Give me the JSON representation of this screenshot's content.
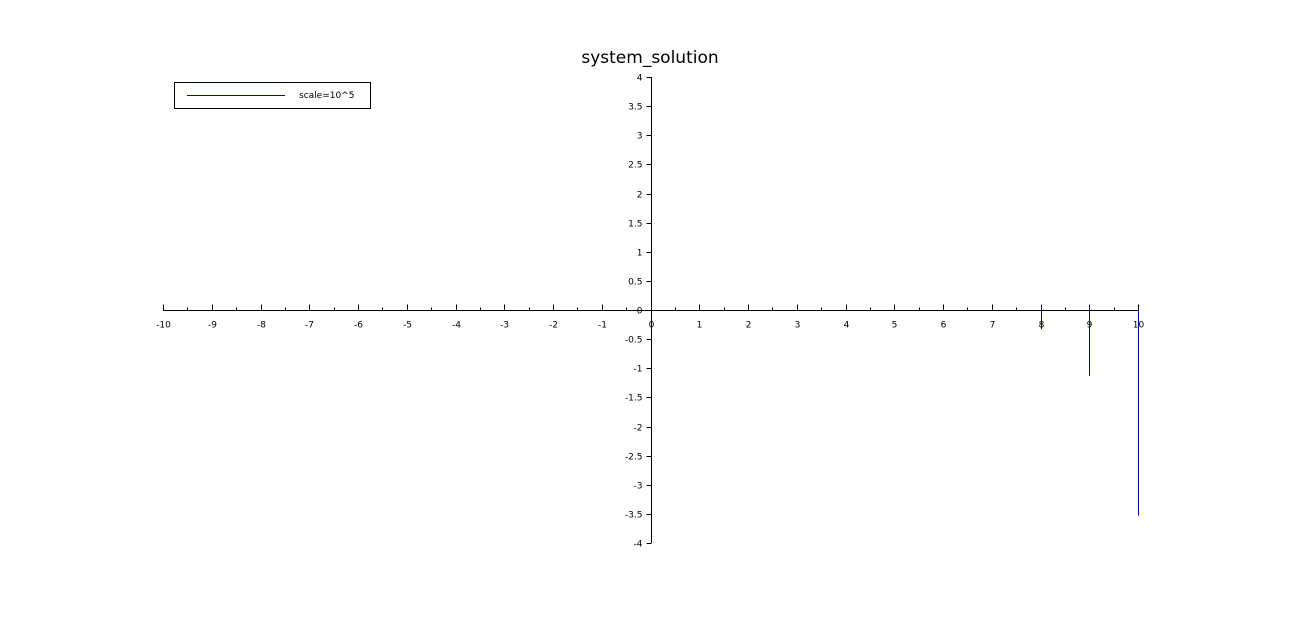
{
  "chart_data": {
    "type": "line",
    "title": "system_solution",
    "xlabel": "",
    "ylabel": "",
    "xlim": [
      -10,
      10
    ],
    "ylim": [
      -4,
      4
    ],
    "x_ticks": [
      -10,
      -9,
      -8,
      -7,
      -6,
      -5,
      -4,
      -3,
      -2,
      -1,
      0,
      1,
      2,
      3,
      4,
      5,
      6,
      7,
      8,
      9,
      10
    ],
    "x_tick_labels": [
      "-10",
      "-9",
      "-8",
      "-7",
      "-6",
      "-5",
      "-4",
      "-3",
      "-2",
      "-1",
      "0",
      "1",
      "2",
      "3",
      "4",
      "5",
      "6",
      "7",
      "8",
      "9",
      "10"
    ],
    "y_ticks": [
      -4,
      -3.5,
      -3,
      -2.5,
      -2,
      -1.5,
      -1,
      -0.5,
      0,
      0.5,
      1,
      1.5,
      2,
      2.5,
      3,
      3.5,
      4
    ],
    "y_tick_labels": [
      "-4",
      "-3.5",
      "-3",
      "-2.5",
      "-2",
      "-1.5",
      "-1",
      "-0.5",
      "0",
      "0.5",
      "1",
      "1.5",
      "2",
      "2.5",
      "3",
      "3.5",
      "4"
    ],
    "grid": false,
    "axes_style": "centered at origin",
    "legend_position": "top-left",
    "series": [
      {
        "name": "scale=10^5",
        "color": "#0000aa",
        "style": "vertical stems",
        "x": [
          8,
          9,
          10
        ],
        "y": [
          -0.33,
          -1.13,
          -3.53
        ]
      }
    ]
  }
}
